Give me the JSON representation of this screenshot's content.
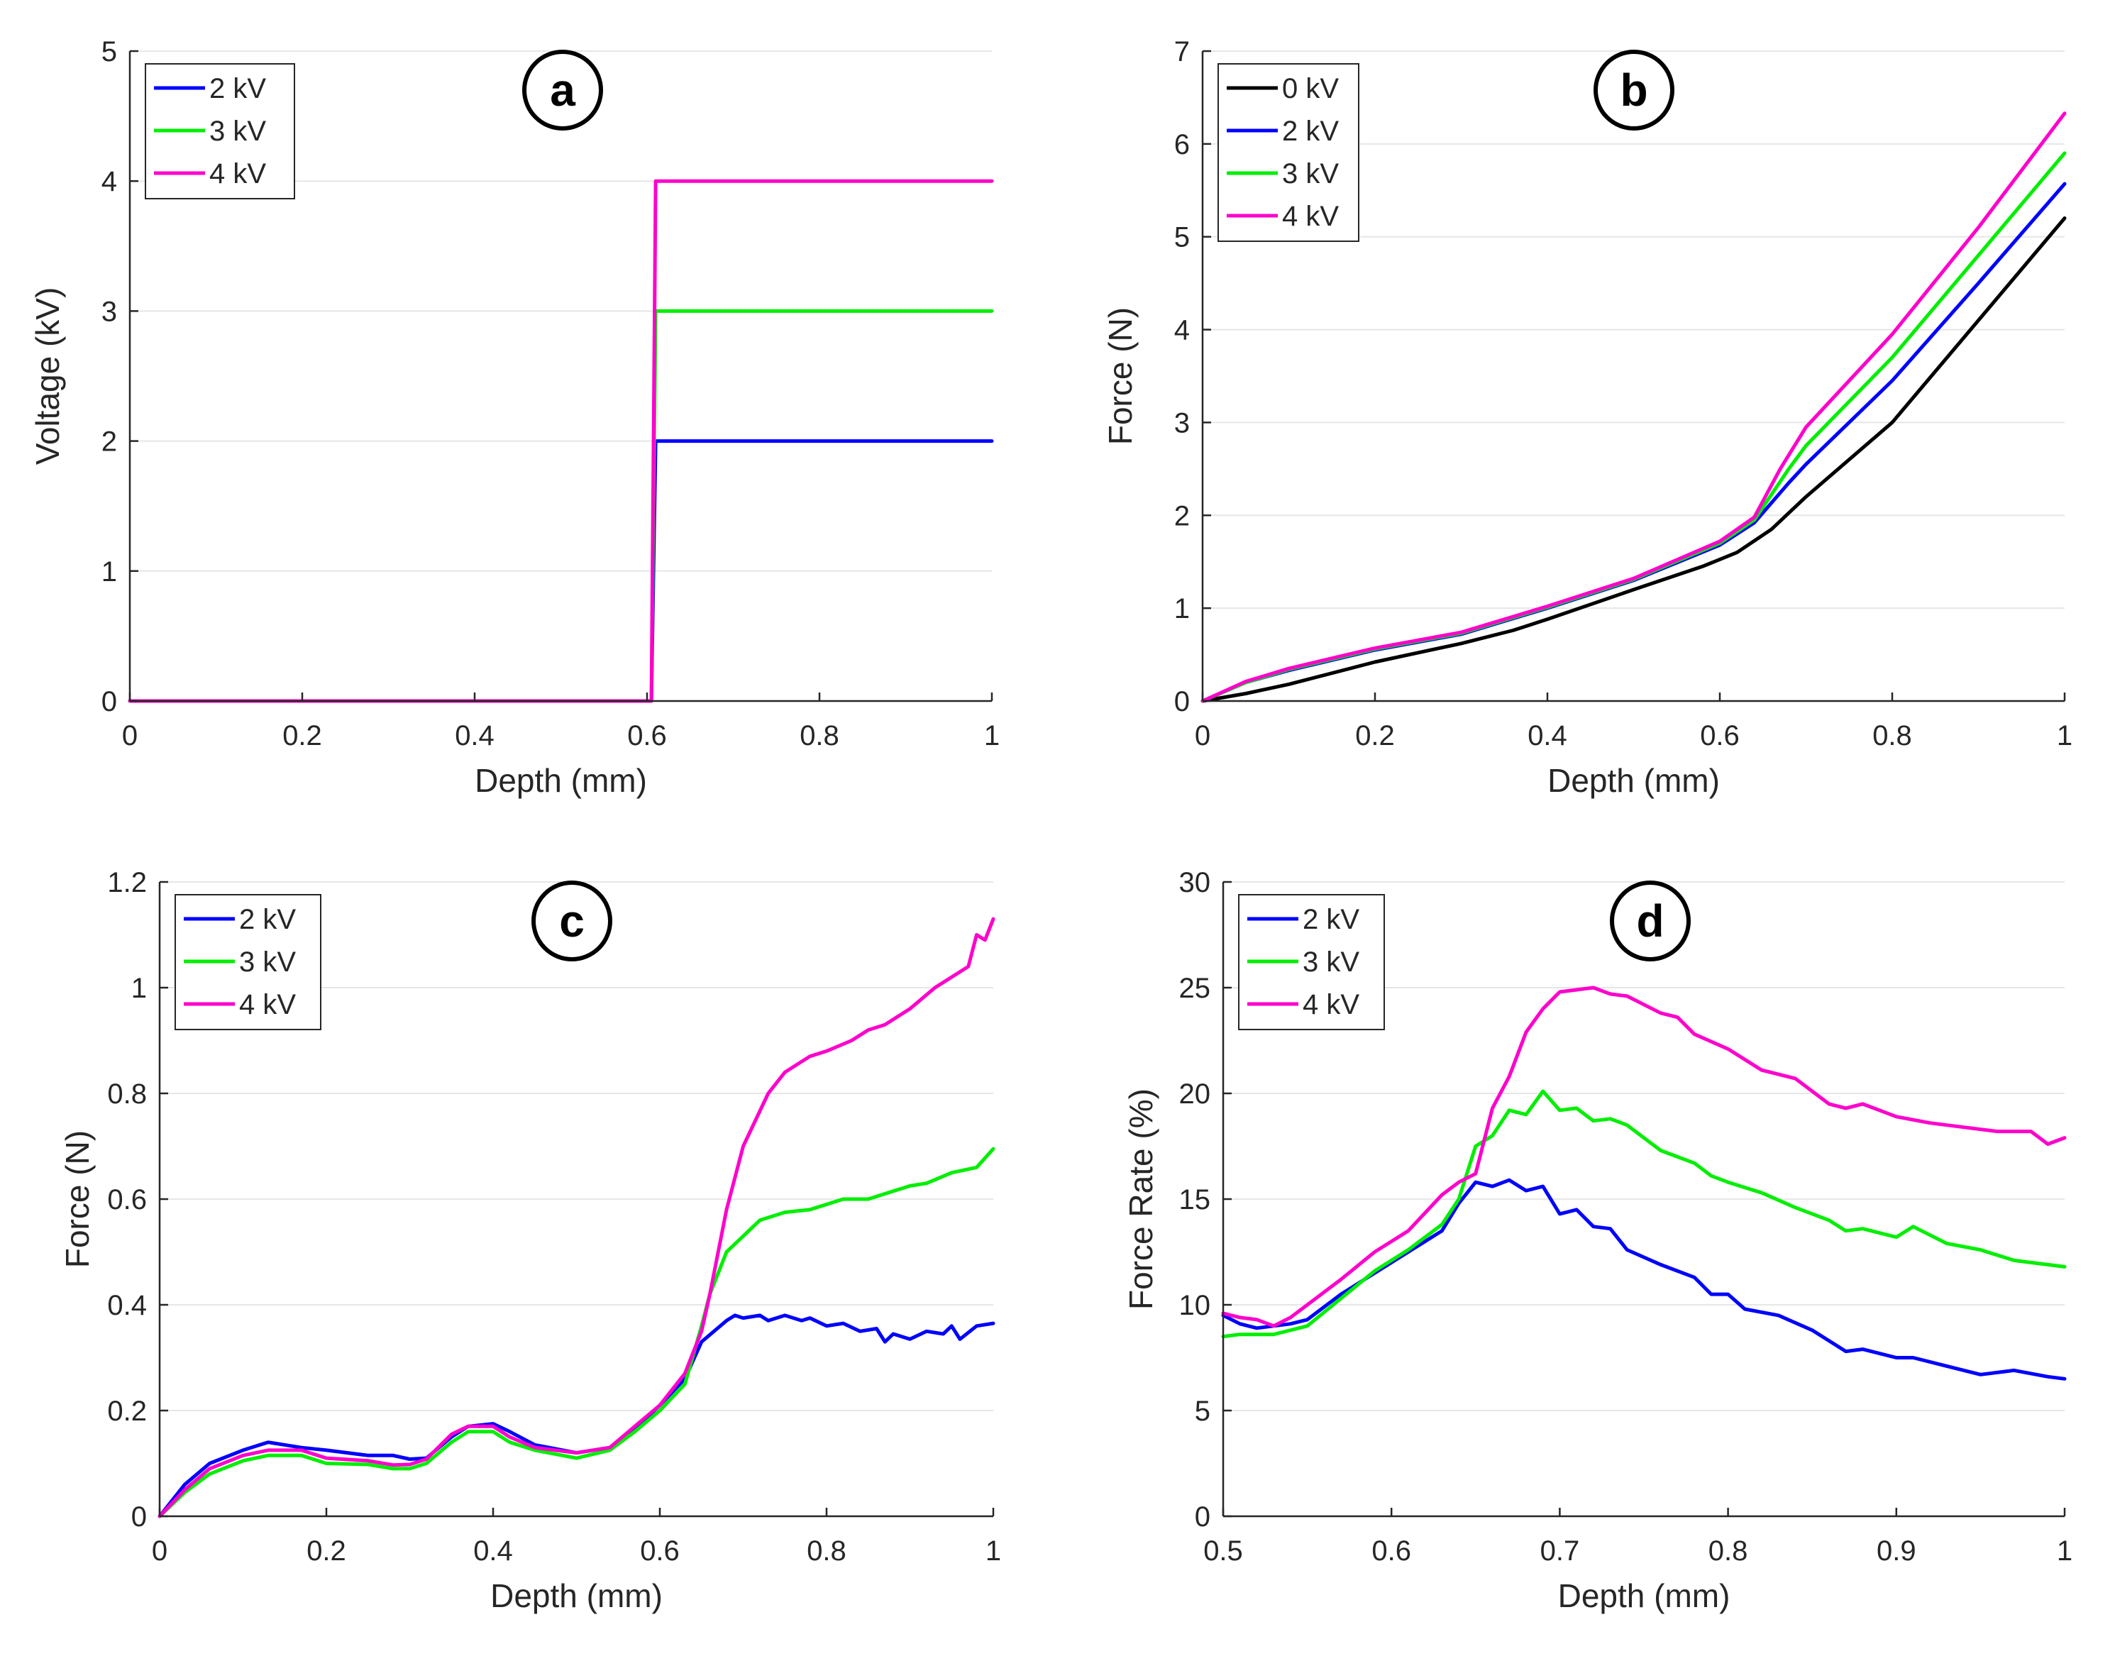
{
  "colors": {
    "0 kV": "#000000",
    "2 kV": "#0000ff",
    "3 kV": "#00ee00",
    "4 kV": "#ff00cc",
    "axis": "#262626",
    "grid": "#e6e6e6"
  },
  "chart_data": [
    {
      "panel": "a",
      "type": "line",
      "xlabel": "Depth (mm)",
      "ylabel": "Voltage (kV)",
      "xlim": [
        0,
        1
      ],
      "ylim": [
        0,
        5
      ],
      "xticks": [
        0,
        0.2,
        0.4,
        0.6,
        0.8,
        1
      ],
      "xticklabels": [
        "0",
        "0.2",
        "0.4",
        "0.6",
        "0.8",
        "1"
      ],
      "yticks": [
        0,
        1,
        2,
        3,
        4,
        5
      ],
      "yticklabels": [
        "0",
        "1",
        "2",
        "3",
        "4",
        "5"
      ],
      "grid": "horizontal",
      "legend": "top-left",
      "series": [
        {
          "name": "2 kV",
          "x": [
            0,
            0.6,
            0.605,
            0.61,
            0.615,
            1
          ],
          "y": [
            0,
            0,
            0,
            2,
            2,
            2
          ]
        },
        {
          "name": "3 kV",
          "x": [
            0,
            0.6,
            0.605,
            0.61,
            0.615,
            1
          ],
          "y": [
            0,
            0,
            0,
            3,
            3,
            3
          ]
        },
        {
          "name": "4 kV",
          "x": [
            0,
            0.6,
            0.605,
            0.61,
            0.615,
            1
          ],
          "y": [
            0,
            0,
            0,
            4,
            4,
            4
          ]
        }
      ]
    },
    {
      "panel": "b",
      "type": "line",
      "xlabel": "Depth (mm)",
      "ylabel": "Force (N)",
      "xlim": [
        0,
        1
      ],
      "ylim": [
        0,
        7
      ],
      "xticks": [
        0,
        0.2,
        0.4,
        0.6,
        0.8,
        1
      ],
      "xticklabels": [
        "0",
        "0.2",
        "0.4",
        "0.6",
        "0.8",
        "1"
      ],
      "yticks": [
        0,
        1,
        2,
        3,
        4,
        5,
        6,
        7
      ],
      "yticklabels": [
        "0",
        "1",
        "2",
        "3",
        "4",
        "5",
        "6",
        "7"
      ],
      "grid": "horizontal",
      "legend": "top-left",
      "series": [
        {
          "name": "0 kV",
          "x": [
            0,
            0.05,
            0.1,
            0.2,
            0.3,
            0.36,
            0.4,
            0.5,
            0.58,
            0.62,
            0.66,
            0.7,
            0.8,
            0.9,
            1.0
          ],
          "y": [
            0,
            0.08,
            0.18,
            0.42,
            0.62,
            0.76,
            0.88,
            1.2,
            1.45,
            1.6,
            1.85,
            2.2,
            3.0,
            4.1,
            5.2
          ]
        },
        {
          "name": "2 kV",
          "x": [
            0,
            0.05,
            0.1,
            0.2,
            0.3,
            0.4,
            0.5,
            0.6,
            0.64,
            0.68,
            0.7,
            0.8,
            0.9,
            1.0
          ],
          "y": [
            0,
            0.2,
            0.33,
            0.55,
            0.72,
            1.0,
            1.3,
            1.68,
            1.92,
            2.35,
            2.55,
            3.45,
            4.5,
            5.57
          ]
        },
        {
          "name": "3 kV",
          "x": [
            0,
            0.05,
            0.1,
            0.2,
            0.3,
            0.4,
            0.5,
            0.6,
            0.64,
            0.68,
            0.7,
            0.8,
            0.9,
            1.0
          ],
          "y": [
            0,
            0.2,
            0.34,
            0.56,
            0.73,
            1.01,
            1.31,
            1.7,
            1.95,
            2.5,
            2.75,
            3.7,
            4.8,
            5.9
          ]
        },
        {
          "name": "4 kV",
          "x": [
            0,
            0.05,
            0.1,
            0.2,
            0.3,
            0.4,
            0.5,
            0.6,
            0.64,
            0.67,
            0.7,
            0.8,
            0.9,
            1.0
          ],
          "y": [
            0,
            0.21,
            0.35,
            0.57,
            0.74,
            1.02,
            1.32,
            1.72,
            1.98,
            2.5,
            2.95,
            3.95,
            5.1,
            6.33
          ]
        }
      ]
    },
    {
      "panel": "c",
      "type": "line",
      "xlabel": "Depth (mm)",
      "ylabel": "Force (N)",
      "xlim": [
        0,
        1
      ],
      "ylim": [
        0,
        1.2
      ],
      "xticks": [
        0,
        0.2,
        0.4,
        0.6,
        0.8,
        1
      ],
      "xticklabels": [
        "0",
        "0.2",
        "0.4",
        "0.6",
        "0.8",
        "1"
      ],
      "yticks": [
        0,
        0.2,
        0.4,
        0.6,
        0.8,
        1,
        1.2
      ],
      "yticklabels": [
        "0",
        "0.2",
        "0.4",
        "0.6",
        "0.8",
        "1",
        "1.2"
      ],
      "grid": "horizontal",
      "legend": "top-left",
      "series": [
        {
          "name": "2 kV",
          "x": [
            0,
            0.03,
            0.06,
            0.1,
            0.13,
            0.17,
            0.2,
            0.25,
            0.28,
            0.3,
            0.32,
            0.35,
            0.37,
            0.4,
            0.42,
            0.45,
            0.5,
            0.54,
            0.57,
            0.6,
            0.63,
            0.65,
            0.68,
            0.69,
            0.7,
            0.72,
            0.73,
            0.75,
            0.77,
            0.78,
            0.8,
            0.82,
            0.84,
            0.86,
            0.87,
            0.88,
            0.9,
            0.92,
            0.94,
            0.95,
            0.96,
            0.98,
            1.0
          ],
          "y": [
            0,
            0.06,
            0.1,
            0.125,
            0.14,
            0.13,
            0.125,
            0.115,
            0.115,
            0.108,
            0.11,
            0.15,
            0.17,
            0.175,
            0.16,
            0.135,
            0.12,
            0.13,
            0.165,
            0.21,
            0.26,
            0.33,
            0.37,
            0.38,
            0.375,
            0.38,
            0.37,
            0.38,
            0.37,
            0.375,
            0.36,
            0.365,
            0.35,
            0.355,
            0.33,
            0.345,
            0.335,
            0.35,
            0.345,
            0.36,
            0.335,
            0.36,
            0.365
          ]
        },
        {
          "name": "3 kV",
          "x": [
            0,
            0.03,
            0.06,
            0.1,
            0.13,
            0.17,
            0.2,
            0.25,
            0.28,
            0.3,
            0.32,
            0.35,
            0.37,
            0.4,
            0.42,
            0.45,
            0.5,
            0.54,
            0.57,
            0.6,
            0.63,
            0.65,
            0.66,
            0.68,
            0.7,
            0.72,
            0.75,
            0.78,
            0.8,
            0.82,
            0.85,
            0.88,
            0.9,
            0.92,
            0.95,
            0.98,
            1.0
          ],
          "y": [
            0,
            0.045,
            0.08,
            0.105,
            0.115,
            0.115,
            0.1,
            0.098,
            0.09,
            0.09,
            0.1,
            0.14,
            0.16,
            0.16,
            0.14,
            0.125,
            0.11,
            0.125,
            0.16,
            0.2,
            0.25,
            0.36,
            0.42,
            0.5,
            0.53,
            0.56,
            0.575,
            0.58,
            0.59,
            0.6,
            0.6,
            0.615,
            0.625,
            0.63,
            0.65,
            0.66,
            0.695
          ]
        },
        {
          "name": "4 kV",
          "x": [
            0,
            0.03,
            0.06,
            0.1,
            0.13,
            0.17,
            0.2,
            0.25,
            0.28,
            0.3,
            0.32,
            0.35,
            0.37,
            0.4,
            0.42,
            0.45,
            0.5,
            0.54,
            0.57,
            0.6,
            0.63,
            0.65,
            0.66,
            0.68,
            0.7,
            0.73,
            0.75,
            0.78,
            0.8,
            0.83,
            0.85,
            0.87,
            0.9,
            0.93,
            0.95,
            0.97,
            0.98,
            0.99,
            1.0
          ],
          "y": [
            0,
            0.05,
            0.09,
            0.115,
            0.125,
            0.125,
            0.11,
            0.105,
            0.097,
            0.098,
            0.108,
            0.155,
            0.17,
            0.17,
            0.15,
            0.13,
            0.12,
            0.13,
            0.17,
            0.21,
            0.27,
            0.35,
            0.42,
            0.58,
            0.7,
            0.8,
            0.84,
            0.87,
            0.88,
            0.9,
            0.92,
            0.93,
            0.96,
            1.0,
            1.02,
            1.04,
            1.1,
            1.09,
            1.13
          ]
        }
      ]
    },
    {
      "panel": "d",
      "type": "line",
      "xlabel": "Depth (mm)",
      "ylabel": "Force Rate (%)",
      "xlim": [
        0.5,
        1
      ],
      "ylim": [
        0,
        30
      ],
      "xticks": [
        0.5,
        0.6,
        0.7,
        0.8,
        0.9,
        1
      ],
      "xticklabels": [
        "0.5",
        "0.6",
        "0.7",
        "0.8",
        "0.9",
        "1"
      ],
      "yticks": [
        0,
        5,
        10,
        15,
        20,
        25,
        30
      ],
      "yticklabels": [
        "0",
        "5",
        "10",
        "15",
        "20",
        "25",
        "30"
      ],
      "grid": "horizontal",
      "legend": "top-left",
      "series": [
        {
          "name": "2 kV",
          "x": [
            0.5,
            0.51,
            0.52,
            0.53,
            0.54,
            0.55,
            0.57,
            0.59,
            0.61,
            0.63,
            0.64,
            0.65,
            0.66,
            0.67,
            0.68,
            0.69,
            0.7,
            0.71,
            0.72,
            0.73,
            0.74,
            0.76,
            0.78,
            0.79,
            0.8,
            0.81,
            0.83,
            0.85,
            0.87,
            0.88,
            0.9,
            0.91,
            0.93,
            0.95,
            0.97,
            0.99,
            1.0
          ],
          "y": [
            9.5,
            9.1,
            8.9,
            9.0,
            9.1,
            9.3,
            10.5,
            11.5,
            12.5,
            13.5,
            14.8,
            15.8,
            15.6,
            15.9,
            15.4,
            15.6,
            14.3,
            14.5,
            13.7,
            13.6,
            12.6,
            11.9,
            11.3,
            10.5,
            10.5,
            9.8,
            9.5,
            8.8,
            7.8,
            7.9,
            7.5,
            7.5,
            7.1,
            6.7,
            6.9,
            6.6,
            6.5
          ]
        },
        {
          "name": "3 kV",
          "x": [
            0.5,
            0.51,
            0.52,
            0.53,
            0.54,
            0.55,
            0.57,
            0.59,
            0.61,
            0.63,
            0.64,
            0.65,
            0.66,
            0.67,
            0.68,
            0.69,
            0.7,
            0.71,
            0.72,
            0.73,
            0.74,
            0.76,
            0.78,
            0.79,
            0.8,
            0.82,
            0.84,
            0.86,
            0.87,
            0.88,
            0.9,
            0.91,
            0.93,
            0.95,
            0.97,
            0.99,
            1.0
          ],
          "y": [
            8.5,
            8.6,
            8.6,
            8.6,
            8.8,
            9.0,
            10.3,
            11.6,
            12.6,
            13.8,
            15.0,
            17.5,
            18.0,
            19.2,
            19.0,
            20.1,
            19.2,
            19.3,
            18.7,
            18.8,
            18.5,
            17.3,
            16.7,
            16.1,
            15.8,
            15.3,
            14.6,
            14.0,
            13.5,
            13.6,
            13.2,
            13.7,
            12.9,
            12.6,
            12.1,
            11.9,
            11.8
          ]
        },
        {
          "name": "4 kV",
          "x": [
            0.5,
            0.51,
            0.52,
            0.53,
            0.54,
            0.55,
            0.57,
            0.59,
            0.61,
            0.63,
            0.64,
            0.65,
            0.66,
            0.67,
            0.68,
            0.69,
            0.7,
            0.71,
            0.72,
            0.73,
            0.74,
            0.76,
            0.77,
            0.78,
            0.8,
            0.82,
            0.84,
            0.86,
            0.87,
            0.88,
            0.9,
            0.92,
            0.94,
            0.96,
            0.98,
            0.99,
            1.0
          ],
          "y": [
            9.6,
            9.4,
            9.3,
            9.0,
            9.4,
            10.0,
            11.2,
            12.5,
            13.5,
            15.2,
            15.8,
            16.2,
            19.3,
            20.8,
            22.9,
            24.0,
            24.8,
            24.9,
            25.0,
            24.7,
            24.6,
            23.8,
            23.6,
            22.8,
            22.1,
            21.1,
            20.7,
            19.5,
            19.3,
            19.5,
            18.9,
            18.6,
            18.4,
            18.2,
            18.2,
            17.6,
            17.9
          ]
        }
      ]
    }
  ]
}
